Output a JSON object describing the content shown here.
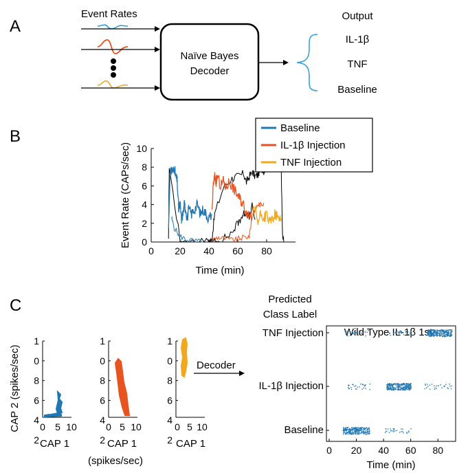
{
  "panelA": {
    "letter": "A",
    "inputs_label": "Event Rates",
    "box_line1": "Naïve Bayes",
    "box_line2": "Decoder",
    "output_title": "Output",
    "outputs": [
      "IL-1β",
      "TNF",
      "Baseline"
    ]
  },
  "panelB": {
    "letter": "B",
    "legend": [
      "Baseline",
      "IL-1β Injection",
      "TNF Injection"
    ],
    "colors": {
      "baseline": "#1f77b4",
      "il1b": "#e8531f",
      "tnf": "#f2a81d",
      "other": "#000000"
    },
    "chart_data": {
      "type": "line",
      "xlabel": "Time (min)",
      "ylabel": "Event Rate (CAPs/sec)",
      "xlim": [
        0,
        100
      ],
      "ylim": [
        0,
        10
      ],
      "xticks": [
        "0",
        "20",
        "40",
        "60",
        "80"
      ],
      "yticks": [
        "0",
        "2",
        "4",
        "6",
        "8",
        "10"
      ],
      "series": [
        {
          "name": "Baseline",
          "color": "#1f77b4",
          "x": [
            12,
            13,
            14,
            15,
            16,
            17,
            18,
            19,
            20,
            21,
            22,
            23,
            24,
            25,
            26,
            28,
            30,
            32,
            34,
            36,
            38,
            40,
            42
          ],
          "y": [
            1.5,
            7,
            7.8,
            7.5,
            8,
            7,
            6.5,
            3.5,
            4,
            2.5,
            3,
            4,
            3.5,
            2.5,
            3.5,
            3,
            3.5,
            4,
            3,
            3.5,
            3,
            2.5,
            3
          ]
        },
        {
          "name": "IL-1β Injection",
          "color": "#e8531f",
          "x": [
            42,
            43,
            44,
            45,
            46,
            48,
            50,
            52,
            54,
            56,
            58,
            60,
            62,
            64,
            66,
            68,
            70
          ],
          "y": [
            3,
            6,
            7,
            6.5,
            7,
            6,
            6.5,
            5.8,
            6.5,
            6,
            5.5,
            5,
            4.5,
            4,
            3.2,
            3,
            2.8
          ]
        },
        {
          "name": "TNF Injection",
          "color": "#f2a81d",
          "x": [
            70,
            72,
            74,
            76,
            78,
            80,
            82,
            84,
            86,
            88,
            90
          ],
          "y": [
            3,
            3.5,
            2,
            3,
            2.5,
            3,
            2,
            2.5,
            3,
            2.5,
            2.5
          ]
        }
      ]
    }
  },
  "panelC": {
    "letter": "C",
    "scatter_ylabel": "CAP 2 (spikes/sec)",
    "xlabel_a": "CAP 1",
    "xlabel_b1": "CAP 1",
    "xlabel_b2": "(spikes/sec)",
    "xlabel_c": "CAP 1",
    "yticks": [
      "1",
      "0",
      "8",
      "6",
      "4",
      "2"
    ],
    "xticks_a": [
      "0",
      "5",
      "10"
    ],
    "xticks_b": [
      "0",
      "5",
      "10"
    ],
    "xticks_c": [
      "0",
      "5",
      "10"
    ],
    "decoder_label": "Decoder",
    "pred_title1": "Predicted",
    "pred_title2": "Class Label",
    "raster_title": "Wild Type IL-1β 1st",
    "classes": [
      "TNF Injection",
      "IL-1β Injection",
      "Baseline"
    ],
    "raster_xlabel": "Time (min)",
    "raster_xticks": [
      "0",
      "20",
      "40",
      "60",
      "80"
    ],
    "chart_data": {
      "type": "scatter",
      "xlabel": "Time (min)",
      "xlim": [
        0,
        92
      ],
      "categories": [
        "Baseline",
        "IL-1β Injection",
        "TNF Injection"
      ],
      "segments": [
        {
          "class": "Baseline",
          "start": 10,
          "end": 30,
          "dense": true
        },
        {
          "class": "Baseline",
          "start": 40,
          "end": 60,
          "dense": false
        },
        {
          "class": "IL-1β Injection",
          "start": 12,
          "end": 30,
          "dense": false
        },
        {
          "class": "IL-1β Injection",
          "start": 42,
          "end": 60,
          "dense": true
        },
        {
          "class": "IL-1β Injection",
          "start": 70,
          "end": 90,
          "dense": false
        },
        {
          "class": "TNF Injection",
          "start": 10,
          "end": 30,
          "dense": false
        },
        {
          "class": "TNF Injection",
          "start": 42,
          "end": 60,
          "dense": false
        },
        {
          "class": "TNF Injection",
          "start": 72,
          "end": 90,
          "dense": true
        }
      ]
    }
  }
}
